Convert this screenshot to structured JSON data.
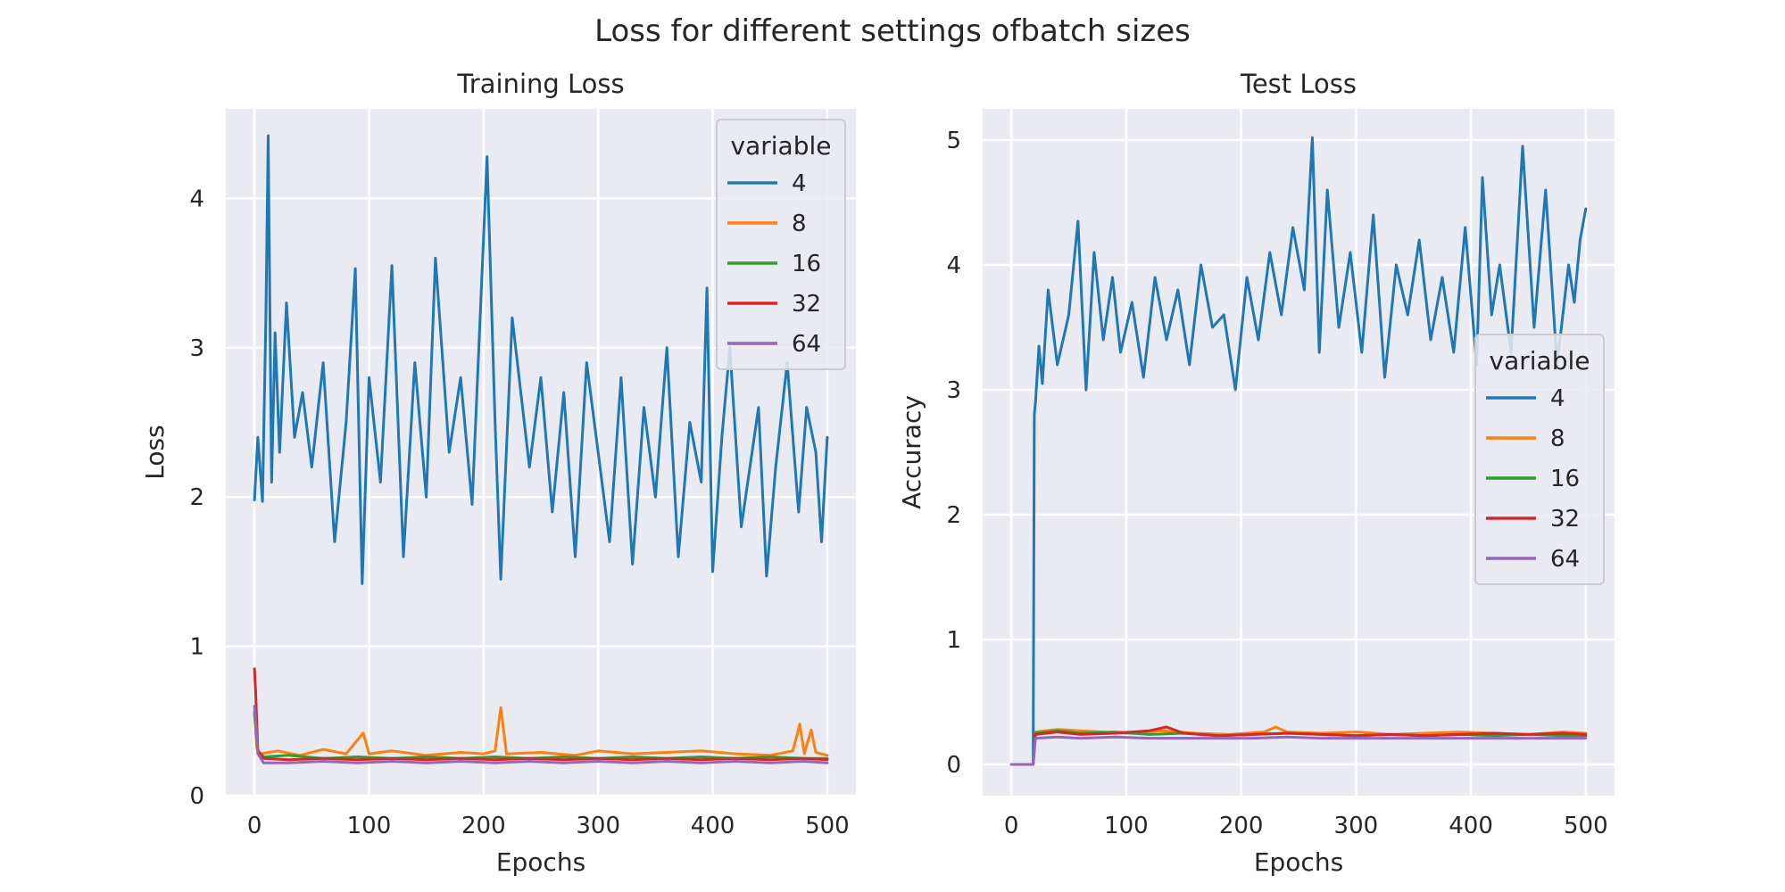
{
  "figure": {
    "suptitle": "Loss for different settings ofbatch sizes"
  },
  "chart_data": [
    {
      "type": "line",
      "title": "Training Loss",
      "xlabel": "Epochs",
      "ylabel": "Loss",
      "xlim": [
        -25,
        525
      ],
      "ylim": [
        0,
        4.6
      ],
      "xticks": [
        0,
        100,
        200,
        300,
        400,
        500
      ],
      "yticks": [
        0,
        1,
        2,
        3,
        4
      ],
      "grid": true,
      "legend": {
        "title": "variable",
        "position": "upper right"
      },
      "colors": {
        "4": "#1f77b4",
        "8": "#ff7f0e",
        "16": "#2ca02c",
        "32": "#d62728",
        "64": "#9467bd"
      },
      "series": [
        {
          "name": "4",
          "x": [
            0,
            3,
            7,
            10,
            12,
            15,
            18,
            22,
            28,
            35,
            42,
            50,
            60,
            70,
            80,
            88,
            94,
            100,
            110,
            120,
            130,
            140,
            150,
            158,
            170,
            180,
            190,
            203,
            210,
            215,
            225,
            240,
            250,
            260,
            270,
            280,
            290,
            300,
            310,
            320,
            330,
            340,
            350,
            360,
            370,
            380,
            390,
            395,
            400,
            408,
            415,
            425,
            440,
            447,
            455,
            465,
            475,
            482,
            490,
            495,
            500
          ],
          "y": [
            1.98,
            2.4,
            1.97,
            3.2,
            4.42,
            2.1,
            3.1,
            2.3,
            3.3,
            2.4,
            2.7,
            2.2,
            2.9,
            1.7,
            2.5,
            3.53,
            1.42,
            2.8,
            2.1,
            3.55,
            1.6,
            2.9,
            2.0,
            3.6,
            2.3,
            2.8,
            1.95,
            4.28,
            2.5,
            1.45,
            3.2,
            2.2,
            2.8,
            1.9,
            2.7,
            1.6,
            2.9,
            2.3,
            1.7,
            2.8,
            1.55,
            2.6,
            2.0,
            3.0,
            1.6,
            2.5,
            2.1,
            3.4,
            1.5,
            2.4,
            3.0,
            1.8,
            2.6,
            1.47,
            2.2,
            2.9,
            1.9,
            2.6,
            2.3,
            1.7,
            2.4
          ]
        },
        {
          "name": "8",
          "x": [
            0,
            2,
            5,
            20,
            40,
            60,
            80,
            95,
            100,
            120,
            150,
            180,
            200,
            210,
            215,
            220,
            250,
            280,
            300,
            330,
            360,
            390,
            420,
            450,
            470,
            476,
            480,
            486,
            490,
            500
          ],
          "y": [
            0.57,
            0.32,
            0.28,
            0.3,
            0.27,
            0.31,
            0.28,
            0.42,
            0.28,
            0.3,
            0.27,
            0.29,
            0.28,
            0.3,
            0.59,
            0.28,
            0.29,
            0.27,
            0.3,
            0.28,
            0.29,
            0.3,
            0.28,
            0.27,
            0.3,
            0.48,
            0.28,
            0.44,
            0.29,
            0.27
          ]
        },
        {
          "name": "16",
          "x": [
            0,
            3,
            8,
            30,
            60,
            90,
            120,
            150,
            180,
            210,
            240,
            270,
            300,
            330,
            360,
            390,
            420,
            450,
            480,
            500
          ],
          "y": [
            0.55,
            0.3,
            0.26,
            0.27,
            0.25,
            0.26,
            0.25,
            0.26,
            0.25,
            0.26,
            0.25,
            0.26,
            0.25,
            0.26,
            0.25,
            0.26,
            0.25,
            0.26,
            0.25,
            0.25
          ]
        },
        {
          "name": "32",
          "x": [
            0,
            1,
            3,
            8,
            30,
            60,
            90,
            120,
            150,
            180,
            210,
            240,
            270,
            300,
            330,
            360,
            390,
            420,
            450,
            480,
            500
          ],
          "y": [
            0.85,
            0.7,
            0.3,
            0.25,
            0.24,
            0.25,
            0.24,
            0.25,
            0.24,
            0.25,
            0.24,
            0.25,
            0.24,
            0.25,
            0.24,
            0.25,
            0.24,
            0.25,
            0.24,
            0.25,
            0.24
          ]
        },
        {
          "name": "64",
          "x": [
            0,
            1,
            3,
            8,
            30,
            60,
            90,
            120,
            150,
            180,
            210,
            240,
            270,
            300,
            330,
            360,
            390,
            420,
            450,
            480,
            500
          ],
          "y": [
            0.6,
            0.5,
            0.28,
            0.22,
            0.22,
            0.23,
            0.22,
            0.23,
            0.22,
            0.23,
            0.22,
            0.23,
            0.22,
            0.23,
            0.22,
            0.23,
            0.22,
            0.23,
            0.22,
            0.23,
            0.22
          ]
        }
      ]
    },
    {
      "type": "line",
      "title": "Test Loss",
      "xlabel": "Epochs",
      "ylabel": "Accuracy",
      "xlim": [
        -25,
        525
      ],
      "ylim": [
        -0.25,
        5.25
      ],
      "xticks": [
        0,
        100,
        200,
        300,
        400,
        500
      ],
      "yticks": [
        0,
        1,
        2,
        3,
        4,
        5
      ],
      "grid": true,
      "legend": {
        "title": "variable",
        "position": "center right"
      },
      "colors": {
        "4": "#1f77b4",
        "8": "#ff7f0e",
        "16": "#2ca02c",
        "32": "#d62728",
        "64": "#9467bd"
      },
      "series": [
        {
          "name": "4",
          "x": [
            0,
            19,
            20,
            21,
            24,
            27,
            32,
            40,
            50,
            58,
            65,
            72,
            80,
            88,
            95,
            105,
            115,
            125,
            135,
            145,
            155,
            165,
            175,
            185,
            195,
            205,
            215,
            225,
            235,
            245,
            255,
            262,
            268,
            275,
            285,
            295,
            305,
            315,
            325,
            335,
            345,
            355,
            365,
            375,
            385,
            395,
            405,
            410,
            418,
            425,
            435,
            445,
            455,
            465,
            475,
            485,
            490,
            495,
            500
          ],
          "y": [
            0,
            0,
            2.8,
            2.9,
            3.35,
            3.05,
            3.8,
            3.2,
            3.6,
            4.35,
            3.0,
            4.1,
            3.4,
            3.9,
            3.3,
            3.7,
            3.1,
            3.9,
            3.4,
            3.8,
            3.2,
            4.0,
            3.5,
            3.6,
            3.0,
            3.9,
            3.4,
            4.1,
            3.6,
            4.3,
            3.8,
            5.02,
            3.3,
            4.6,
            3.5,
            4.1,
            3.3,
            4.4,
            3.1,
            4.0,
            3.6,
            4.2,
            3.4,
            3.9,
            3.3,
            4.3,
            3.2,
            4.7,
            3.6,
            4.0,
            3.3,
            4.95,
            3.5,
            4.6,
            3.2,
            4.0,
            3.7,
            4.2,
            4.45
          ]
        },
        {
          "name": "8",
          "x": [
            0,
            19,
            21,
            40,
            60,
            80,
            100,
            130,
            160,
            190,
            220,
            230,
            240,
            270,
            300,
            330,
            360,
            390,
            420,
            450,
            480,
            500
          ],
          "y": [
            0,
            0,
            0.26,
            0.28,
            0.27,
            0.26,
            0.25,
            0.27,
            0.25,
            0.24,
            0.26,
            0.3,
            0.26,
            0.25,
            0.26,
            0.24,
            0.25,
            0.26,
            0.25,
            0.24,
            0.26,
            0.25
          ]
        },
        {
          "name": "16",
          "x": [
            0,
            19,
            21,
            40,
            60,
            90,
            120,
            150,
            180,
            210,
            240,
            270,
            300,
            330,
            360,
            390,
            420,
            450,
            480,
            500
          ],
          "y": [
            0,
            0,
            0.25,
            0.27,
            0.25,
            0.26,
            0.24,
            0.25,
            0.23,
            0.24,
            0.25,
            0.24,
            0.23,
            0.24,
            0.23,
            0.24,
            0.23,
            0.24,
            0.23,
            0.23
          ]
        },
        {
          "name": "32",
          "x": [
            0,
            19,
            21,
            40,
            60,
            90,
            120,
            135,
            150,
            180,
            210,
            240,
            270,
            300,
            330,
            360,
            390,
            420,
            450,
            480,
            500
          ],
          "y": [
            0,
            0,
            0.24,
            0.26,
            0.24,
            0.25,
            0.27,
            0.3,
            0.25,
            0.23,
            0.24,
            0.25,
            0.24,
            0.23,
            0.24,
            0.23,
            0.24,
            0.25,
            0.24,
            0.25,
            0.24
          ]
        },
        {
          "name": "64",
          "x": [
            0,
            19,
            21,
            40,
            60,
            90,
            120,
            150,
            180,
            210,
            240,
            270,
            300,
            330,
            360,
            390,
            420,
            450,
            480,
            500
          ],
          "y": [
            0,
            0,
            0.21,
            0.22,
            0.21,
            0.22,
            0.21,
            0.21,
            0.21,
            0.21,
            0.22,
            0.21,
            0.21,
            0.21,
            0.21,
            0.21,
            0.21,
            0.21,
            0.21,
            0.21
          ]
        }
      ]
    }
  ]
}
